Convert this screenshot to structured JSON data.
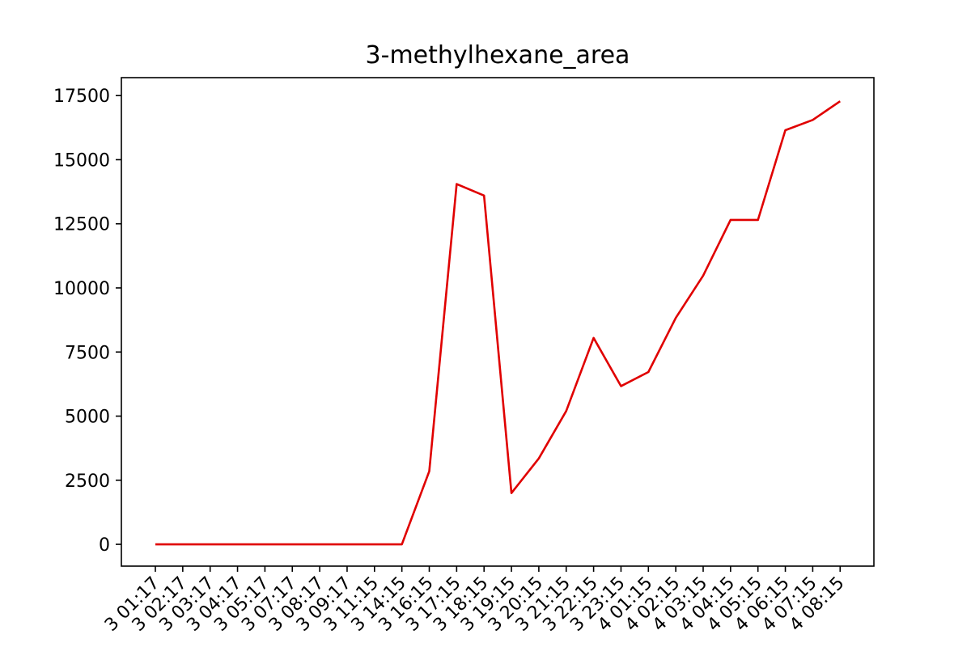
{
  "chart_data": {
    "type": "line",
    "title": "3-methylhexane_area",
    "xlabel": "",
    "ylabel": "",
    "x_tick_labels": [
      "3 01:17",
      "3 02:17",
      "3 03:17",
      "3 04:17",
      "3 05:17",
      "3 07:17",
      "3 08:17",
      "3 09:17",
      "3 11:15",
      "3 14:15",
      "3 16:15",
      "3 17:15",
      "3 18:15",
      "3 19:15",
      "3 20:15",
      "3 21:15",
      "3 22:15",
      "3 23:15",
      "4 01:15",
      "4 02:15",
      "4 03:15",
      "4 04:15",
      "4 05:15",
      "4 06:15",
      "4 07:15",
      "4 08:15"
    ],
    "y_ticks": [
      0,
      2500,
      5000,
      7500,
      10000,
      12500,
      15000,
      17500
    ],
    "y_tick_labels": [
      "0",
      "2500",
      "5000",
      "7500",
      "10000",
      "12500",
      "15000",
      "17500"
    ],
    "ylim": [
      -850,
      18200
    ],
    "grid": false,
    "series": [
      {
        "color": "#e00000",
        "values": [
          0,
          0,
          0,
          0,
          0,
          0,
          0,
          0,
          0,
          0,
          2850,
          14050,
          13600,
          2000,
          3350,
          5200,
          8050,
          6170,
          6720,
          8830,
          10480,
          12650,
          12650,
          16150,
          16550,
          17280
        ]
      }
    ]
  }
}
